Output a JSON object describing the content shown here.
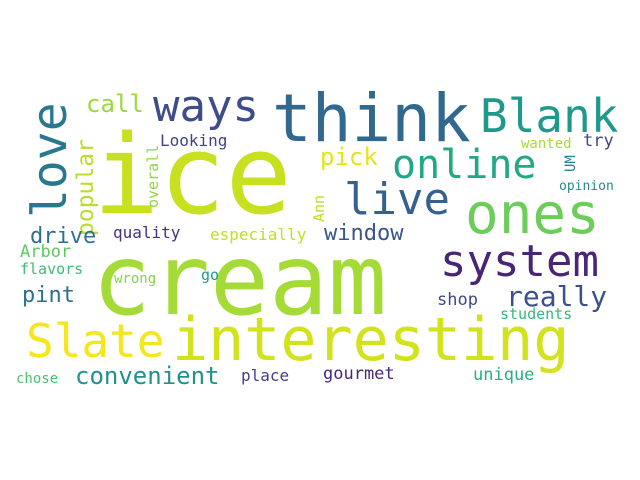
{
  "words": [
    {
      "text": "ice",
      "color": "#c8e020"
    },
    {
      "text": "cream",
      "color": "#a5db36"
    },
    {
      "text": "think",
      "color": "#31688e"
    },
    {
      "text": "interesting",
      "color": "#d2e21b"
    },
    {
      "text": "ways",
      "color": "#3e4c8a"
    },
    {
      "text": "Blank",
      "color": "#1f9a8a"
    },
    {
      "text": "ones",
      "color": "#6ccd5a"
    },
    {
      "text": "system",
      "color": "#482576"
    },
    {
      "text": "online",
      "color": "#22a884"
    },
    {
      "text": "live",
      "color": "#34618d"
    },
    {
      "text": "love",
      "color": "#2a788e"
    },
    {
      "text": "Slate",
      "color": "#f5e61e"
    },
    {
      "text": "really",
      "color": "#3b518b"
    },
    {
      "text": "convenient",
      "color": "#21918c"
    },
    {
      "text": "popular",
      "color": "#b8de29"
    },
    {
      "text": "call",
      "color": "#9bd93c"
    },
    {
      "text": "pick",
      "color": "#e5e419"
    },
    {
      "text": "drive",
      "color": "#2c728e"
    },
    {
      "text": "window",
      "color": "#3a548c"
    },
    {
      "text": "pint",
      "color": "#2d708e"
    },
    {
      "text": "Looking",
      "color": "#414487"
    },
    {
      "text": "quality",
      "color": "#46327e"
    },
    {
      "text": "especially",
      "color": "#c0df25"
    },
    {
      "text": "overall",
      "color": "#90d743"
    },
    {
      "text": "Arbor",
      "color": "#5ec962"
    },
    {
      "text": "Ann",
      "color": "#c2df23"
    },
    {
      "text": "flavors",
      "color": "#3dbc74"
    },
    {
      "text": "wrong",
      "color": "#84d44b"
    },
    {
      "text": "go",
      "color": "#1e9b8a"
    },
    {
      "text": "shop",
      "color": "#3f4889"
    },
    {
      "text": "students",
      "color": "#35b779"
    },
    {
      "text": "unique",
      "color": "#29af7f"
    },
    {
      "text": "place",
      "color": "#433e85"
    },
    {
      "text": "gourmet",
      "color": "#482878"
    },
    {
      "text": "chose",
      "color": "#4ac16d"
    },
    {
      "text": "try",
      "color": "#404588"
    },
    {
      "text": "wanted",
      "color": "#a8db34"
    },
    {
      "text": "UM",
      "color": "#25848e"
    },
    {
      "text": "opinion",
      "color": "#238a8d"
    }
  ]
}
